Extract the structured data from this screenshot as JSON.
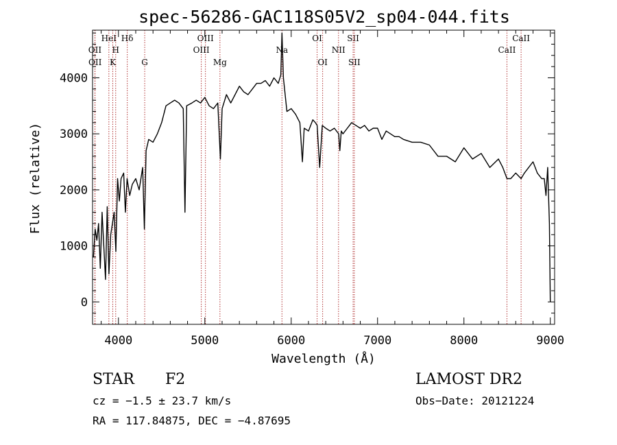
{
  "chart_data": {
    "type": "line",
    "title": "spec-56286-GAC118S05V2_sp04-044.fits",
    "xlabel": "Wavelength (Å)",
    "ylabel": "Flux (relative)",
    "xlim": [
      3700,
      9050
    ],
    "ylim": [
      -400,
      4850
    ],
    "xticks": [
      4000,
      5000,
      6000,
      7000,
      8000,
      9000
    ],
    "yticks": [
      0,
      1000,
      2000,
      3000,
      4000
    ],
    "xtick_labels": [
      "4000",
      "5000",
      "6000",
      "7000",
      "8000",
      "9000"
    ],
    "ytick_labels": [
      "0",
      "1000",
      "2000",
      "3000",
      "4000"
    ],
    "x_minor_step": 200,
    "y_minor_step": 200,
    "grid": false,
    "legend": "none",
    "line_color": "#000000",
    "marker_color": "#b03030",
    "spectrum": {
      "x": [
        3710,
        3730,
        3750,
        3770,
        3790,
        3810,
        3830,
        3850,
        3870,
        3890,
        3910,
        3930,
        3950,
        3970,
        3990,
        4010,
        4030,
        4060,
        4080,
        4100,
        4130,
        4160,
        4200,
        4240,
        4280,
        4300,
        4320,
        4350,
        4400,
        4450,
        4500,
        4550,
        4600,
        4650,
        4700,
        4750,
        4770,
        4790,
        4850,
        4900,
        4950,
        5000,
        5050,
        5100,
        5150,
        5180,
        5200,
        5250,
        5300,
        5350,
        5400,
        5450,
        5500,
        5550,
        5600,
        5650,
        5700,
        5750,
        5800,
        5850,
        5880,
        5893,
        5910,
        5950,
        6000,
        6050,
        6100,
        6130,
        6150,
        6200,
        6250,
        6280,
        6300,
        6330,
        6360,
        6400,
        6450,
        6500,
        6550,
        6563,
        6580,
        6600,
        6650,
        6700,
        6750,
        6800,
        6850,
        6900,
        6950,
        7000,
        7050,
        7100,
        7150,
        7200,
        7250,
        7300,
        7400,
        7500,
        7600,
        7700,
        7800,
        7900,
        8000,
        8100,
        8200,
        8300,
        8400,
        8450,
        8498,
        8542,
        8600,
        8662,
        8700,
        8750,
        8800,
        8850,
        8900,
        8930,
        8950,
        8970,
        8990,
        9000
      ],
      "y": [
        800,
        1300,
        1100,
        1400,
        600,
        1600,
        1000,
        400,
        1700,
        500,
        1200,
        1400,
        1600,
        900,
        2200,
        1800,
        2200,
        2300,
        1600,
        2200,
        1900,
        2100,
        2200,
        2000,
        2400,
        1300,
        2700,
        2900,
        2850,
        3000,
        3200,
        3500,
        3550,
        3600,
        3550,
        3450,
        1600,
        3500,
        3550,
        3600,
        3550,
        3650,
        3500,
        3450,
        3550,
        2550,
        3450,
        3700,
        3550,
        3700,
        3850,
        3750,
        3700,
        3800,
        3900,
        3900,
        3950,
        3850,
        4000,
        3900,
        4050,
        4800,
        4000,
        3400,
        3450,
        3350,
        3200,
        2500,
        3100,
        3050,
        3250,
        3200,
        3150,
        2400,
        3150,
        3100,
        3050,
        3100,
        3000,
        2700,
        3050,
        3000,
        3100,
        3200,
        3150,
        3100,
        3150,
        3050,
        3100,
        3100,
        2900,
        3050,
        3000,
        2950,
        2950,
        2900,
        2850,
        2850,
        2800,
        2600,
        2600,
        2500,
        2750,
        2550,
        2650,
        2400,
        2550,
        2400,
        2200,
        2200,
        2300,
        2200,
        2300,
        2400,
        2500,
        2300,
        2200,
        2200,
        1900,
        2400,
        1400,
        0
      ]
    },
    "lines": [
      {
        "name": "OII",
        "x": 3727,
        "row": 1
      },
      {
        "name": "OII",
        "x": 3729,
        "row": 2
      },
      {
        "name": "HeI",
        "x": 3889,
        "row": 0
      },
      {
        "name": "H",
        "x": 3968,
        "row": 1
      },
      {
        "name": "K",
        "x": 3934,
        "row": 2
      },
      {
        "name": "Hδ",
        "x": 4102,
        "row": 0
      },
      {
        "name": "G",
        "x": 4304,
        "row": 2
      },
      {
        "name": "OIII",
        "x": 5007,
        "row": 0
      },
      {
        "name": "OIII",
        "x": 4959,
        "row": 1
      },
      {
        "name": "Mg",
        "x": 5175,
        "row": 2
      },
      {
        "name": "Na",
        "x": 5893,
        "row": 1
      },
      {
        "name": "OI",
        "x": 6300,
        "row": 0
      },
      {
        "name": "OI",
        "x": 6364,
        "row": 2
      },
      {
        "name": "NII",
        "x": 6548,
        "row": 1
      },
      {
        "name": "SII",
        "x": 6717,
        "row": 0
      },
      {
        "name": "SII",
        "x": 6731,
        "row": 2
      },
      {
        "name": "CaII",
        "x": 8662,
        "row": 0
      },
      {
        "name": "CaII",
        "x": 8498,
        "row": 1
      }
    ]
  },
  "info": {
    "object_class": "STAR",
    "subclass": "F2",
    "survey": "LAMOST DR2",
    "cz": "cz = −1.5 ± 23.7 km/s",
    "obs_date": "Obs−Date: 20121224",
    "coords": "RA = 117.84875, DEC =  −4.87695"
  }
}
